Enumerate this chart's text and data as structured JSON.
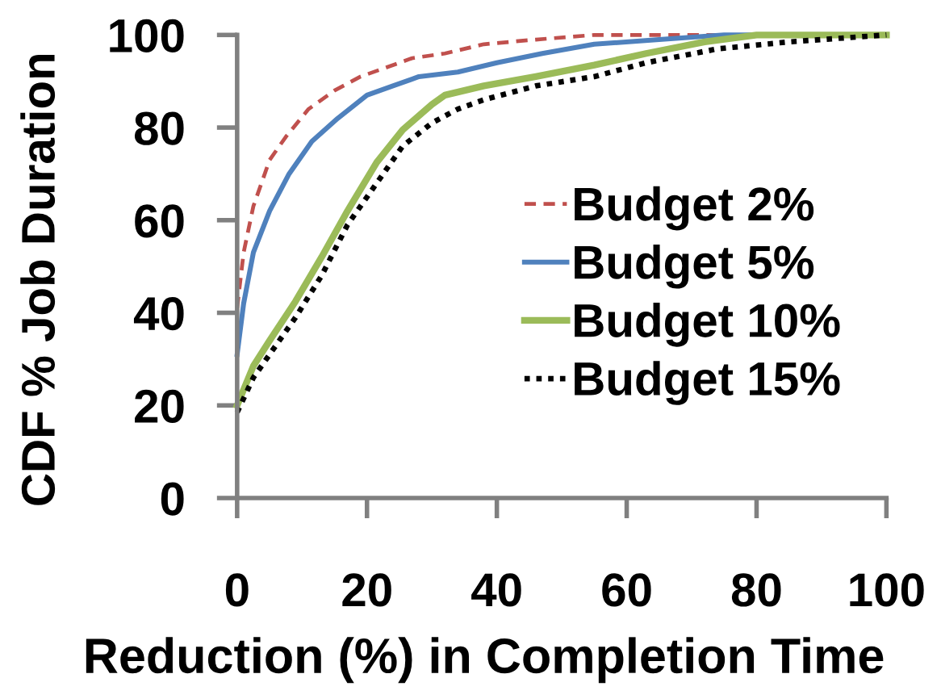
{
  "chart_data": {
    "type": "line",
    "xlabel": "Reduction (%) in Completion Time",
    "ylabel": "CDF % Job Duration",
    "xlim": [
      0,
      100
    ],
    "ylim": [
      0,
      100
    ],
    "xticks": [
      0,
      20,
      40,
      60,
      80,
      100
    ],
    "yticks": [
      0,
      20,
      40,
      60,
      80,
      100
    ],
    "grid": false,
    "legend": "center right",
    "marker": "none",
    "series": [
      {
        "name": "Budget 2%",
        "color": "#c0504d",
        "line_style": "dashed",
        "x": [
          0,
          1,
          2.5,
          5,
          7.5,
          11,
          15,
          19,
          23,
          27,
          32,
          38,
          46,
          55,
          100
        ],
        "values": [
          41,
          53,
          63,
          73,
          78,
          84,
          88,
          91,
          93,
          95,
          96,
          98,
          99,
          100,
          100
        ]
      },
      {
        "name": "Budget 5%",
        "color": "#4f81bd",
        "line_style": "solid",
        "x": [
          0,
          1,
          2.5,
          5,
          8,
          11.5,
          15.5,
          20,
          24,
          28,
          34,
          40,
          47,
          55,
          65,
          75,
          100
        ],
        "values": [
          31,
          42,
          53,
          62,
          70,
          77,
          82,
          87,
          89,
          91,
          92,
          94,
          96,
          98,
          99,
          100,
          100
        ]
      },
      {
        "name": "Budget 10%",
        "color": "#9bbb59",
        "line_style": "solid",
        "x": [
          0,
          2.5,
          5,
          9,
          13,
          17,
          21.5,
          25.5,
          30,
          32,
          38,
          46,
          55,
          63,
          72,
          80,
          100
        ],
        "values": [
          20,
          28.5,
          34,
          42.5,
          52,
          62,
          72.5,
          79.5,
          85,
          87,
          89,
          91,
          93.5,
          96,
          98.5,
          100,
          100
        ]
      },
      {
        "name": "Budget 15%",
        "color": "#000000",
        "line_style": "dotted",
        "x": [
          0,
          2.5,
          5,
          9,
          13,
          17,
          21.5,
          25.5,
          30,
          34,
          38,
          46,
          55,
          63,
          74,
          85,
          100
        ],
        "values": [
          18.5,
          26,
          31,
          39,
          48,
          59,
          68,
          76,
          81,
          84,
          86,
          89,
          91,
          94,
          97,
          98.5,
          100
        ]
      }
    ]
  }
}
